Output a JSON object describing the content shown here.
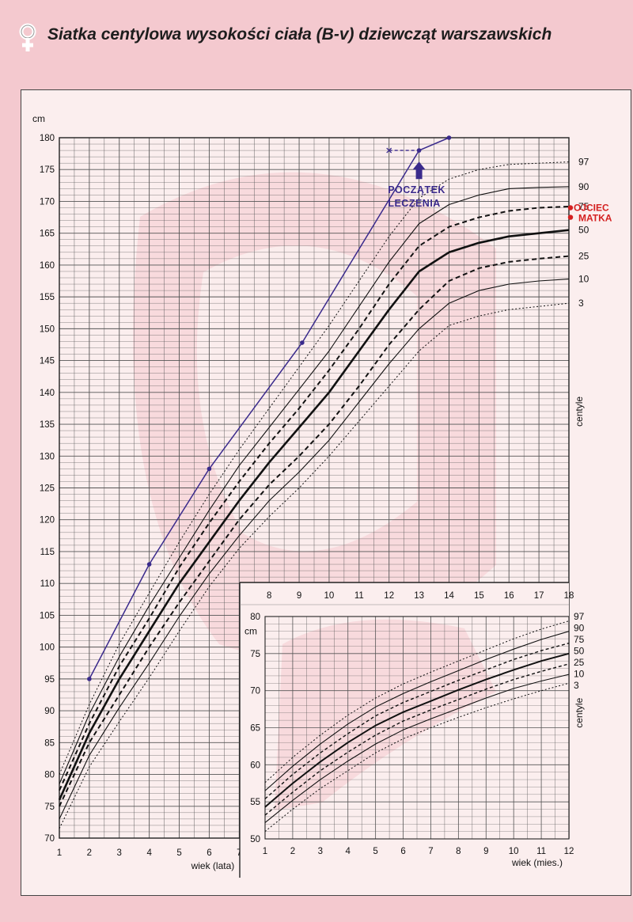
{
  "title": "Siatka centylowa wysokości ciała (B-v) dziewcząt warszawskich",
  "colors": {
    "page_background": "#f4c9cf",
    "chart_background": "#fbeeee",
    "patient_line": "#3a2a8c",
    "parent_marker": "#d42020",
    "grid": "#444444"
  },
  "chart_data": [
    {
      "type": "line",
      "name": "main",
      "ylabel": "cm",
      "xlabel": "wiek (lata)",
      "xlim": [
        1,
        18
      ],
      "ylim": [
        70,
        180
      ],
      "x_ticks_bottom": [
        1,
        2,
        3,
        4,
        5,
        6,
        7
      ],
      "x_ticks_top": [
        8,
        9,
        10,
        11,
        12,
        13,
        14,
        15,
        16,
        17,
        18
      ],
      "y_ticks": [
        70,
        75,
        80,
        85,
        90,
        95,
        100,
        105,
        110,
        115,
        120,
        125,
        130,
        135,
        140,
        145,
        150,
        155,
        160,
        165,
        170,
        175,
        180
      ],
      "centile_axis_label": "centyle",
      "series": [
        {
          "name": "3",
          "style": "dotted",
          "points": [
            [
              1,
              71.5
            ],
            [
              2,
              81.2
            ],
            [
              3,
              88.3
            ],
            [
              4,
              95.2
            ],
            [
              5,
              102.5
            ],
            [
              6,
              109.5
            ],
            [
              7,
              115.5
            ],
            [
              8,
              120.5
            ],
            [
              9,
              125
            ],
            [
              10,
              130
            ],
            [
              11,
              135.5
            ],
            [
              12,
              141
            ],
            [
              13,
              146.5
            ],
            [
              14,
              150.5
            ],
            [
              15,
              152
            ],
            [
              16,
              153
            ],
            [
              17,
              153.5
            ],
            [
              18,
              154
            ]
          ]
        },
        {
          "name": "10",
          "style": "solid",
          "points": [
            [
              1,
              73
            ],
            [
              2,
              83
            ],
            [
              3,
              90.5
            ],
            [
              4,
              97.5
            ],
            [
              5,
              104.8
            ],
            [
              6,
              111.5
            ],
            [
              7,
              117.5
            ],
            [
              8,
              123
            ],
            [
              9,
              127.5
            ],
            [
              10,
              132.5
            ],
            [
              11,
              138.5
            ],
            [
              12,
              144.5
            ],
            [
              13,
              150
            ],
            [
              14,
              154
            ],
            [
              15,
              156
            ],
            [
              16,
              157
            ],
            [
              17,
              157.5
            ],
            [
              18,
              157.8
            ]
          ]
        },
        {
          "name": "25",
          "style": "dashed",
          "points": [
            [
              1,
              75
            ],
            [
              2,
              85
            ],
            [
              3,
              92.5
            ],
            [
              4,
              100
            ],
            [
              5,
              107
            ],
            [
              6,
              113.5
            ],
            [
              7,
              120
            ],
            [
              8,
              125.5
            ],
            [
              9,
              130
            ],
            [
              10,
              135
            ],
            [
              11,
              141
            ],
            [
              12,
              147.5
            ],
            [
              13,
              153
            ],
            [
              14,
              157.5
            ],
            [
              15,
              159.5
            ],
            [
              16,
              160.5
            ],
            [
              17,
              161
            ],
            [
              18,
              161.4
            ]
          ]
        },
        {
          "name": "50",
          "style": "bold",
          "points": [
            [
              1,
              76
            ],
            [
              2,
              86.5
            ],
            [
              3,
              95
            ],
            [
              4,
              102.5
            ],
            [
              5,
              110
            ],
            [
              6,
              116.5
            ],
            [
              7,
              123
            ],
            [
              8,
              129
            ],
            [
              9,
              134.5
            ],
            [
              10,
              140
            ],
            [
              11,
              146.5
            ],
            [
              12,
              153
            ],
            [
              13,
              159
            ],
            [
              14,
              162
            ],
            [
              15,
              163.5
            ],
            [
              16,
              164.5
            ],
            [
              17,
              165
            ],
            [
              18,
              165.5
            ]
          ]
        },
        {
          "name": "75",
          "style": "dashed",
          "points": [
            [
              1,
              77.5
            ],
            [
              2,
              88
            ],
            [
              3,
              97
            ],
            [
              4,
              104.5
            ],
            [
              5,
              112.5
            ],
            [
              6,
              119.5
            ],
            [
              7,
              126
            ],
            [
              8,
              132
            ],
            [
              9,
              137.5
            ],
            [
              10,
              143.5
            ],
            [
              11,
              150
            ],
            [
              12,
              157
            ],
            [
              13,
              163
            ],
            [
              14,
              166
            ],
            [
              15,
              167.5
            ],
            [
              16,
              168.5
            ],
            [
              17,
              169
            ],
            [
              18,
              169.2
            ]
          ]
        },
        {
          "name": "90",
          "style": "solid",
          "points": [
            [
              1,
              78.5
            ],
            [
              2,
              89.5
            ],
            [
              3,
              98.5
            ],
            [
              4,
              106.5
            ],
            [
              5,
              114
            ],
            [
              6,
              121.5
            ],
            [
              7,
              128.5
            ],
            [
              8,
              134.5
            ],
            [
              9,
              140.5
            ],
            [
              10,
              146.5
            ],
            [
              11,
              153.5
            ],
            [
              12,
              160.5
            ],
            [
              13,
              166.5
            ],
            [
              14,
              169.5
            ],
            [
              15,
              171
            ],
            [
              16,
              172
            ],
            [
              17,
              172.2
            ],
            [
              18,
              172.3
            ]
          ]
        },
        {
          "name": "97",
          "style": "dotted",
          "points": [
            [
              1,
              80
            ],
            [
              2,
              91
            ],
            [
              3,
              100.5
            ],
            [
              4,
              108.5
            ],
            [
              5,
              116.5
            ],
            [
              6,
              124
            ],
            [
              7,
              131
            ],
            [
              8,
              137.5
            ],
            [
              9,
              144
            ],
            [
              10,
              150.5
            ],
            [
              11,
              157.5
            ],
            [
              12,
              164.5
            ],
            [
              13,
              170.5
            ],
            [
              14,
              173.5
            ],
            [
              15,
              175
            ],
            [
              16,
              175.8
            ],
            [
              17,
              176
            ],
            [
              18,
              176.2
            ]
          ]
        },
        {
          "name": "patient",
          "style": "patient",
          "points": [
            [
              2,
              95
            ],
            [
              4,
              113
            ],
            [
              6,
              128
            ],
            [
              9.1,
              147.8
            ],
            [
              13,
              178
            ],
            [
              14,
              180
            ]
          ]
        },
        {
          "name": "patient-offset",
          "style": "patient-dashed",
          "points": [
            [
              12,
              178
            ],
            [
              13,
              178
            ]
          ]
        }
      ],
      "centile_labels": [
        "3",
        "10",
        "25",
        "50",
        "75",
        "90",
        "97"
      ],
      "annotations": [
        {
          "text_line1": "POCZĄTEK",
          "text_line2": "LECZENIA",
          "x": 13,
          "y": 175
        }
      ],
      "parent_heights": [
        {
          "label": "OJCIEC",
          "value": 169
        },
        {
          "label": "MATKA",
          "value": 167.5
        }
      ]
    },
    {
      "type": "line",
      "name": "inset",
      "ylabel": "cm",
      "xlabel": "wiek (mies.)",
      "xlim": [
        1,
        12
      ],
      "ylim": [
        50,
        80
      ],
      "x_ticks": [
        1,
        2,
        3,
        4,
        5,
        6,
        7,
        8,
        9,
        10,
        11,
        12
      ],
      "y_ticks": [
        50,
        55,
        60,
        65,
        70,
        75,
        80
      ],
      "centile_axis_label": "centyle",
      "series": [
        {
          "name": "3",
          "style": "dotted",
          "points": [
            [
              1,
              51
            ],
            [
              2,
              54
            ],
            [
              3,
              56.8
            ],
            [
              4,
              59.2
            ],
            [
              5,
              61.6
            ],
            [
              6,
              63.5
            ],
            [
              7,
              65
            ],
            [
              8,
              66.4
            ],
            [
              9,
              67.7
            ],
            [
              10,
              68.9
            ],
            [
              11,
              70
            ],
            [
              12,
              71
            ]
          ]
        },
        {
          "name": "10",
          "style": "solid",
          "points": [
            [
              1,
              52.2
            ],
            [
              2,
              55.2
            ],
            [
              3,
              58
            ],
            [
              4,
              60.5
            ],
            [
              5,
              62.8
            ],
            [
              6,
              64.7
            ],
            [
              7,
              66.2
            ],
            [
              8,
              67.6
            ],
            [
              9,
              69
            ],
            [
              10,
              70.3
            ],
            [
              11,
              71.3
            ],
            [
              12,
              72.2
            ]
          ]
        },
        {
          "name": "25",
          "style": "dashed",
          "points": [
            [
              1,
              53.2
            ],
            [
              2,
              56.3
            ],
            [
              3,
              59.2
            ],
            [
              4,
              61.7
            ],
            [
              5,
              64
            ],
            [
              6,
              65.9
            ],
            [
              7,
              67.4
            ],
            [
              8,
              68.8
            ],
            [
              9,
              70.2
            ],
            [
              10,
              71.5
            ],
            [
              11,
              72.6
            ],
            [
              12,
              73.6
            ]
          ]
        },
        {
          "name": "50",
          "style": "bold",
          "points": [
            [
              1,
              54.3
            ],
            [
              2,
              57.5
            ],
            [
              3,
              60.4
            ],
            [
              4,
              63
            ],
            [
              5,
              65.3
            ],
            [
              6,
              67.1
            ],
            [
              7,
              68.6
            ],
            [
              8,
              70.1
            ],
            [
              9,
              71.5
            ],
            [
              10,
              72.8
            ],
            [
              11,
              74
            ],
            [
              12,
              75
            ]
          ]
        },
        {
          "name": "75",
          "style": "dashed",
          "points": [
            [
              1,
              55.4
            ],
            [
              2,
              58.7
            ],
            [
              3,
              61.6
            ],
            [
              4,
              64.2
            ],
            [
              5,
              66.6
            ],
            [
              6,
              68.4
            ],
            [
              7,
              69.9
            ],
            [
              8,
              71.4
            ],
            [
              9,
              72.8
            ],
            [
              10,
              74.2
            ],
            [
              11,
              75.4
            ],
            [
              12,
              76.4
            ]
          ]
        },
        {
          "name": "90",
          "style": "solid",
          "points": [
            [
              1,
              56.5
            ],
            [
              2,
              59.8
            ],
            [
              3,
              62.8
            ],
            [
              4,
              65.5
            ],
            [
              5,
              67.8
            ],
            [
              6,
              69.6
            ],
            [
              7,
              71.2
            ],
            [
              8,
              72.7
            ],
            [
              9,
              74.2
            ],
            [
              10,
              75.6
            ],
            [
              11,
              76.9
            ],
            [
              12,
              78
            ]
          ]
        },
        {
          "name": "97",
          "style": "dotted",
          "points": [
            [
              1,
              57.6
            ],
            [
              2,
              61
            ],
            [
              3,
              64
            ],
            [
              4,
              66.7
            ],
            [
              5,
              69
            ],
            [
              6,
              70.9
            ],
            [
              7,
              72.5
            ],
            [
              8,
              74
            ],
            [
              9,
              75.5
            ],
            [
              10,
              77
            ],
            [
              11,
              78.3
            ],
            [
              12,
              79.4
            ]
          ]
        }
      ],
      "centile_labels": [
        "97",
        "90",
        "75",
        "50",
        "25",
        "10",
        "3"
      ]
    }
  ]
}
